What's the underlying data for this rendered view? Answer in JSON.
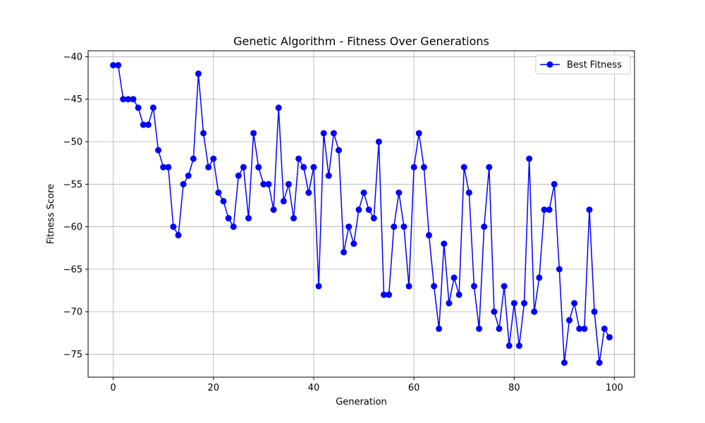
{
  "chart_data": {
    "type": "line",
    "title": "Genetic Algorithm - Fitness Over Generations",
    "xlabel": "Generation",
    "ylabel": "Fitness Score",
    "xlim": [
      -5,
      104
    ],
    "ylim": [
      -77.7,
      -39.3
    ],
    "xticks": [
      0,
      20,
      40,
      60,
      80,
      100
    ],
    "yticks": [
      -40,
      -45,
      -50,
      -55,
      -60,
      -65,
      -70,
      -75
    ],
    "grid": true,
    "legend_position": "top-right",
    "series": [
      {
        "name": "Best Fitness",
        "color": "#0000ff",
        "marker": "circle",
        "x": [
          0,
          1,
          2,
          3,
          4,
          5,
          6,
          7,
          8,
          9,
          10,
          11,
          12,
          13,
          14,
          15,
          16,
          17,
          18,
          19,
          20,
          21,
          22,
          23,
          24,
          25,
          26,
          27,
          28,
          29,
          30,
          31,
          32,
          33,
          34,
          35,
          36,
          37,
          38,
          39,
          40,
          41,
          42,
          43,
          44,
          45,
          46,
          47,
          48,
          49,
          50,
          51,
          52,
          53,
          54,
          55,
          56,
          57,
          58,
          59,
          60,
          61,
          62,
          63,
          64,
          65,
          66,
          67,
          68,
          69,
          70,
          71,
          72,
          73,
          74,
          75,
          76,
          77,
          78,
          79,
          80,
          81,
          82,
          83,
          84,
          85,
          86,
          87,
          88,
          89,
          90,
          91,
          92,
          93,
          94,
          95,
          96,
          97,
          98,
          99
        ],
        "y": [
          -41,
          -41,
          -45,
          -45,
          -45,
          -46,
          -48,
          -48,
          -46,
          -51,
          -53,
          -53,
          -60,
          -61,
          -55,
          -54,
          -52,
          -42,
          -49,
          -53,
          -52,
          -56,
          -57,
          -59,
          -60,
          -54,
          -53,
          -59,
          -49,
          -53,
          -55,
          -55,
          -58,
          -46,
          -57,
          -55,
          -59,
          -52,
          -53,
          -56,
          -53,
          -67,
          -49,
          -54,
          -49,
          -51,
          -63,
          -60,
          -62,
          -58,
          -56,
          -58,
          -59,
          -50,
          -68,
          -68,
          -60,
          -56,
          -60,
          -67,
          -53,
          -49,
          -53,
          -61,
          -67,
          -72,
          -62,
          -69,
          -66,
          -68,
          -53,
          -56,
          -67,
          -72,
          -60,
          -53,
          -70,
          -72,
          -67,
          -74,
          -69,
          -74,
          -69,
          -52,
          -70,
          -66,
          -58,
          -58,
          -55,
          -65,
          -76,
          -71,
          -69,
          -72,
          -72,
          -58,
          -70,
          -76,
          -72,
          -73
        ]
      }
    ]
  }
}
